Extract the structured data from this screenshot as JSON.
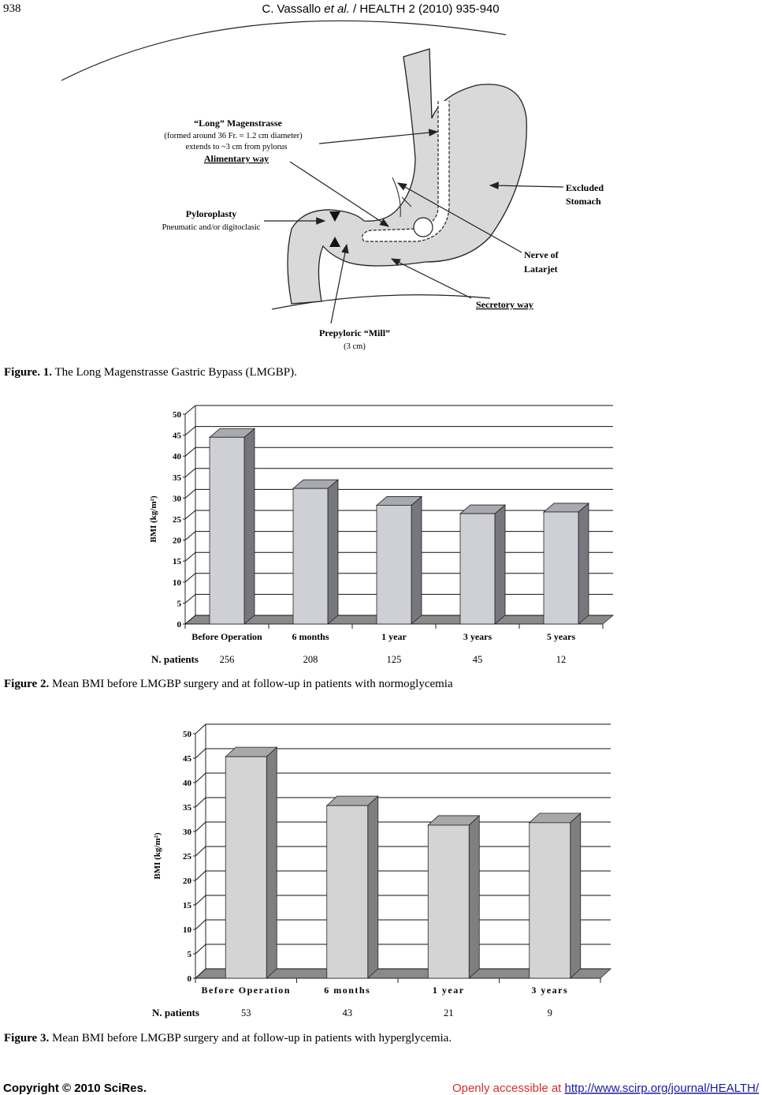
{
  "header": {
    "page": "938",
    "authors": "C. Vassallo ",
    "etal": "et al.",
    "journal": " / HEALTH 2 (2010) 935-940"
  },
  "figure1": {
    "labels": {
      "long_title": "“Long” Magenstrasse",
      "long_note1": "(formed around 36 Fr. = 1.2 cm diameter)",
      "long_note2": "extends to ~3 cm from pylorus",
      "alimentary": "Alimentary way",
      "pyloroplasty": "Pyloroplasty",
      "pyloroplasty_note": "Pneumatic and/or digitoclasic",
      "excluded1": "Excluded",
      "excluded2": "Stomach",
      "nerve1": "Nerve of",
      "nerve2": "Latarjet",
      "secretory": "Secretory way",
      "mill": "Prepyloric “Mill”",
      "mill_note": "(3 cm)"
    },
    "caption_label": "Figure. 1.",
    "caption": " The Long Magenstrasse Gastric Bypass (LMGBP)."
  },
  "chart_data": [
    {
      "type": "bar",
      "ylabel": "BMI (kg/m²)",
      "categories": [
        "Before Operation",
        "6 months",
        "1 year",
        "3 years",
        "5 years"
      ],
      "values": [
        44.5,
        32.3,
        28.3,
        26.3,
        26.7
      ],
      "color": "#cfcfd6",
      "side_color": "#76767e",
      "top_color": "#a9a9b0",
      "ylim": [
        0,
        50
      ],
      "yticks": [
        0,
        5,
        10,
        15,
        20,
        25,
        30,
        35,
        40,
        45,
        50
      ],
      "grid": true,
      "row_label": "N. patients",
      "row_values": [
        256,
        208,
        125,
        45,
        12
      ],
      "caption_label": "Figure 2.",
      "caption": " Mean BMI before LMGBP surgery and at follow-up in patients with normoglycemia"
    },
    {
      "type": "bar",
      "ylabel": "BMI (kg/m²)",
      "categories": [
        "Before Operation",
        "6 months",
        "1 year",
        "3 years"
      ],
      "values": [
        45.3,
        35.3,
        31.3,
        31.8
      ],
      "color": "#d4d4d4",
      "side_color": "#7f7f7f",
      "top_color": "#a8a8a8",
      "ylim": [
        0,
        50
      ],
      "yticks": [
        0,
        5,
        10,
        15,
        20,
        25,
        30,
        35,
        40,
        45,
        50
      ],
      "grid": true,
      "row_label": "N. patients",
      "row_values": [
        53,
        43,
        21,
        9
      ],
      "caption_label": "Figure 3.",
      "caption": " Mean BMI before LMGBP surgery and at follow-up in patients with hyperglycemia."
    }
  ],
  "footer": {
    "copyright": "Copyright © 2010 SciRes.",
    "access": "Openly accessible at ",
    "url": "http://www.scirp.org/journal/HEALTH/"
  }
}
